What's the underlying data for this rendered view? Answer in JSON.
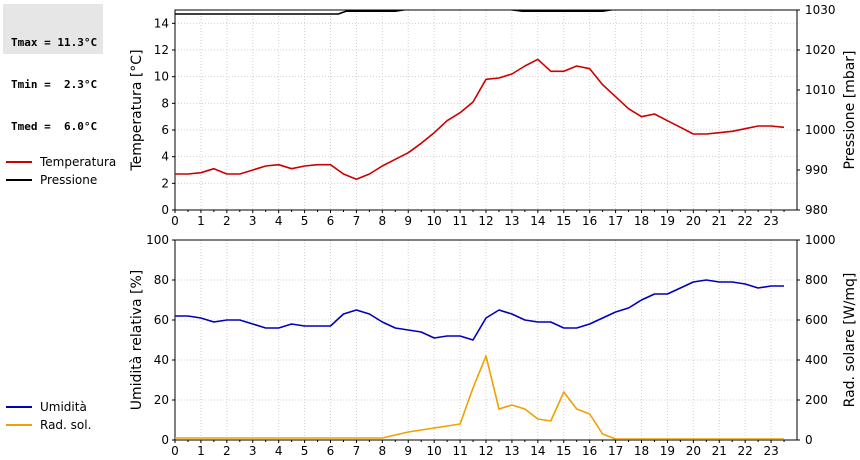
{
  "stats": {
    "tmax": "Tmax = 11.3°C",
    "tmin": "Tmin =  2.3°C",
    "tmed": "Tmed =  6.0°C"
  },
  "chart_data": [
    {
      "type": "line",
      "ylabel_left": "Temperatura [°C]",
      "ylabel_right": "Pressione [mbar]",
      "xlim": [
        0,
        24
      ],
      "ylim_left": [
        0,
        15
      ],
      "ylim_right": [
        980,
        1030
      ],
      "x_ticks": [
        "0",
        "1",
        "2",
        "3",
        "4",
        "5",
        "6",
        "7",
        "8",
        "9",
        "10",
        "11",
        "12",
        "13",
        "14",
        "15",
        "16",
        "17",
        "18",
        "19",
        "20",
        "21",
        "22",
        "23"
      ],
      "y_ticks_left": [
        "0",
        "2",
        "4",
        "6",
        "8",
        "10",
        "12",
        "14"
      ],
      "y_ticks_right": [
        "980",
        "990",
        "1000",
        "1010",
        "1020",
        "1030"
      ],
      "grid": true,
      "legend": [
        {
          "name": "Temperatura",
          "color": "#cc0000"
        },
        {
          "name": "Pressione",
          "color": "#000000"
        }
      ],
      "series": [
        {
          "name": "Temperatura",
          "axis": "left",
          "color": "#cc0000",
          "x": [
            0,
            0.5,
            1,
            1.5,
            2,
            2.5,
            3,
            3.5,
            4,
            4.5,
            5,
            5.5,
            6,
            6.5,
            7,
            7.5,
            8,
            8.5,
            9,
            9.5,
            10,
            10.5,
            11,
            11.5,
            12,
            12.5,
            13,
            13.5,
            14,
            14.5,
            15,
            15.5,
            16,
            16.5,
            17,
            17.5,
            18,
            18.5,
            19,
            19.5,
            20,
            20.5,
            21,
            21.5,
            22,
            22.5,
            23,
            23.5
          ],
          "y": [
            2.7,
            2.7,
            2.8,
            3.1,
            2.7,
            2.7,
            3.0,
            3.3,
            3.4,
            3.1,
            3.3,
            3.4,
            3.4,
            2.7,
            2.3,
            2.7,
            3.3,
            3.8,
            4.3,
            5.0,
            5.8,
            6.7,
            7.3,
            8.1,
            9.8,
            9.9,
            10.2,
            10.8,
            11.3,
            10.4,
            10.4,
            10.8,
            10.6,
            9.4,
            8.5,
            7.6,
            7.0,
            7.2,
            6.7,
            6.2,
            5.7,
            5.7,
            5.8,
            5.9,
            6.1,
            6.3,
            6.3,
            6.2
          ]
        },
        {
          "name": "Pressione",
          "axis": "right",
          "color": "#000000",
          "x": [
            0,
            6.3,
            6.6,
            8.5,
            9,
            12.8,
            13.4,
            16.5,
            17,
            19.4,
            20
          ],
          "y": [
            1029,
            1029,
            1029.7,
            1029.7,
            1030.2,
            1030.2,
            1029.7,
            1029.7,
            1030.2,
            1030.2,
            1031
          ]
        }
      ]
    },
    {
      "type": "line",
      "ylabel_left": "Umidità relativa [%]",
      "ylabel_right": "Rad. solare [W/mq]",
      "xlim": [
        0,
        24
      ],
      "ylim_left": [
        0,
        100
      ],
      "ylim_right": [
        0,
        1000
      ],
      "x_ticks": [
        "0",
        "1",
        "2",
        "3",
        "4",
        "5",
        "6",
        "7",
        "8",
        "9",
        "10",
        "11",
        "12",
        "13",
        "14",
        "15",
        "16",
        "17",
        "18",
        "19",
        "20",
        "21",
        "22",
        "23"
      ],
      "y_ticks_left": [
        "0",
        "20",
        "40",
        "60",
        "80",
        "100"
      ],
      "y_ticks_right": [
        "0",
        "200",
        "400",
        "600",
        "800",
        "1000"
      ],
      "grid": true,
      "legend": [
        {
          "name": "Umidità",
          "color": "#0000bb"
        },
        {
          "name": "Rad. sol.",
          "color": "#f0a000"
        }
      ],
      "series": [
        {
          "name": "Umidità",
          "axis": "left",
          "color": "#0000bb",
          "x": [
            0,
            0.5,
            1,
            1.5,
            2,
            2.5,
            3,
            3.5,
            4,
            4.5,
            5,
            5.5,
            6,
            6.5,
            7,
            7.5,
            8,
            8.5,
            9,
            9.5,
            10,
            10.5,
            11,
            11.5,
            12,
            12.5,
            13,
            13.5,
            14,
            14.5,
            15,
            15.5,
            16,
            16.5,
            17,
            17.5,
            18,
            18.5,
            19,
            19.5,
            20,
            20.5,
            21,
            21.5,
            22,
            22.5,
            23,
            23.5
          ],
          "y": [
            62,
            62,
            61,
            59,
            60,
            60,
            58,
            56,
            56,
            58,
            57,
            57,
            57,
            63,
            65,
            63,
            59,
            56,
            55,
            54,
            51,
            52,
            52,
            50,
            61,
            65,
            63,
            60,
            59,
            59,
            56,
            56,
            58,
            61,
            64,
            66,
            70,
            73,
            73,
            76,
            79,
            80,
            79,
            79,
            78,
            76,
            77,
            77
          ]
        },
        {
          "name": "Rad. sol.",
          "axis": "right",
          "color": "#f0a000",
          "x": [
            0,
            1,
            2,
            3,
            4,
            5,
            6,
            7,
            8,
            8.5,
            9,
            9.5,
            10,
            10.5,
            11,
            11.5,
            12,
            12.5,
            13,
            13.5,
            14,
            14.5,
            15,
            15.5,
            16,
            16.5,
            17,
            17.5,
            18,
            19,
            20,
            21,
            22,
            23,
            23.5
          ],
          "y": [
            10,
            10,
            10,
            10,
            10,
            10,
            10,
            10,
            10,
            25,
            40,
            50,
            60,
            70,
            80,
            260,
            420,
            155,
            175,
            155,
            105,
            95,
            240,
            155,
            130,
            30,
            5,
            5,
            5,
            5,
            5,
            5,
            5,
            5,
            5
          ]
        }
      ]
    }
  ]
}
